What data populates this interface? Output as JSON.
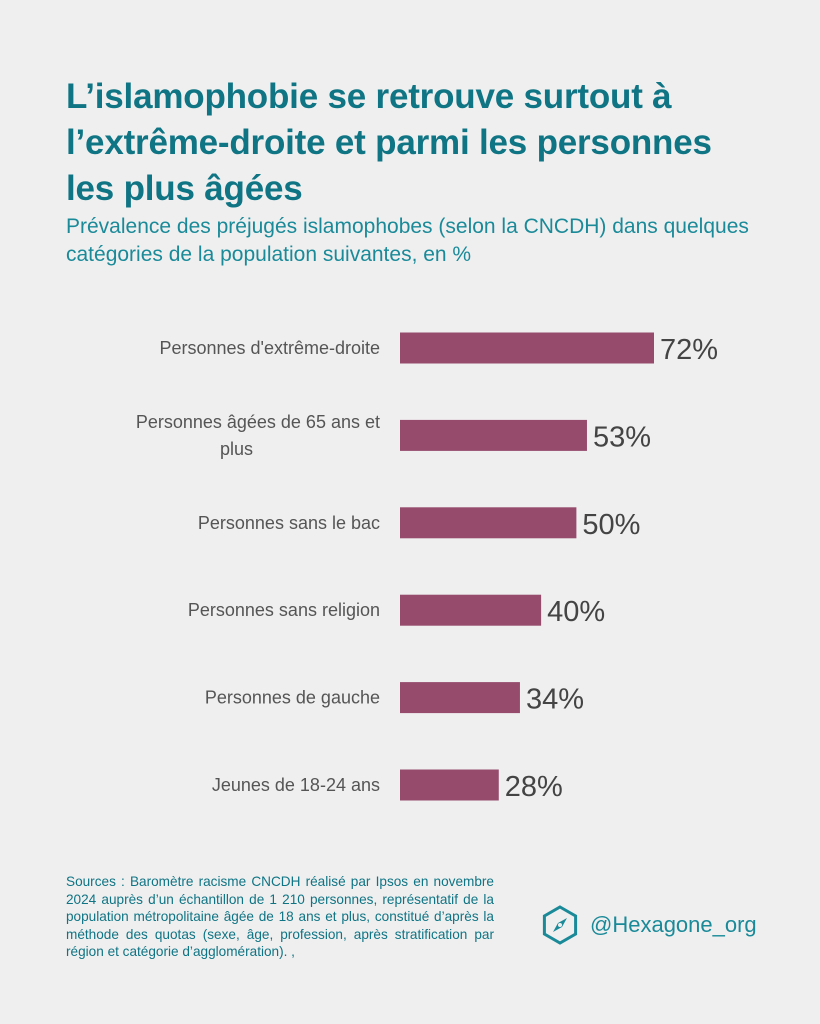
{
  "title": "L’islamophobie se retrouve surtout à l’extrême-droite et parmi les personnes les plus âgées",
  "subtitle": "Prévalence des préjugés islamophobes (selon la CNCDH) dans quelques catégories de la population suivantes, en %",
  "chart_data": {
    "type": "bar",
    "orientation": "horizontal",
    "categories": [
      [
        "Personnes d'extrême-droite"
      ],
      [
        "Personnes âgées de 65 ans et",
        "plus"
      ],
      [
        "Personnes sans le bac"
      ],
      [
        "Personnes sans religion"
      ],
      [
        "Personnes de gauche"
      ],
      [
        "Jeunes de 18-24 ans"
      ]
    ],
    "values": [
      72,
      53,
      50,
      40,
      34,
      28
    ],
    "value_labels": [
      "72%",
      "53%",
      "50%",
      "40%",
      "34%",
      "28%"
    ],
    "xlim": [
      0,
      100
    ],
    "grid": false,
    "legend": "none",
    "bar_color": "#964b6d",
    "label_color": "#555555",
    "value_color": "#444444"
  },
  "sources": "Sources : Baromètre racisme CNCDH réalisé par Ipsos en novembre 2024 auprès d’un échantillon de 1 210 personnes, représentatif de la population métropolitaine âgée de 18 ans et plus, constitué d’après la méthode des quotas (sexe, âge, profession, après stratification par région et catégorie d’agglomération). ,",
  "brand": {
    "logo_icon": "hexagon-compass-icon",
    "handle": "@Hexagone_org",
    "color": "#1a8a99"
  }
}
